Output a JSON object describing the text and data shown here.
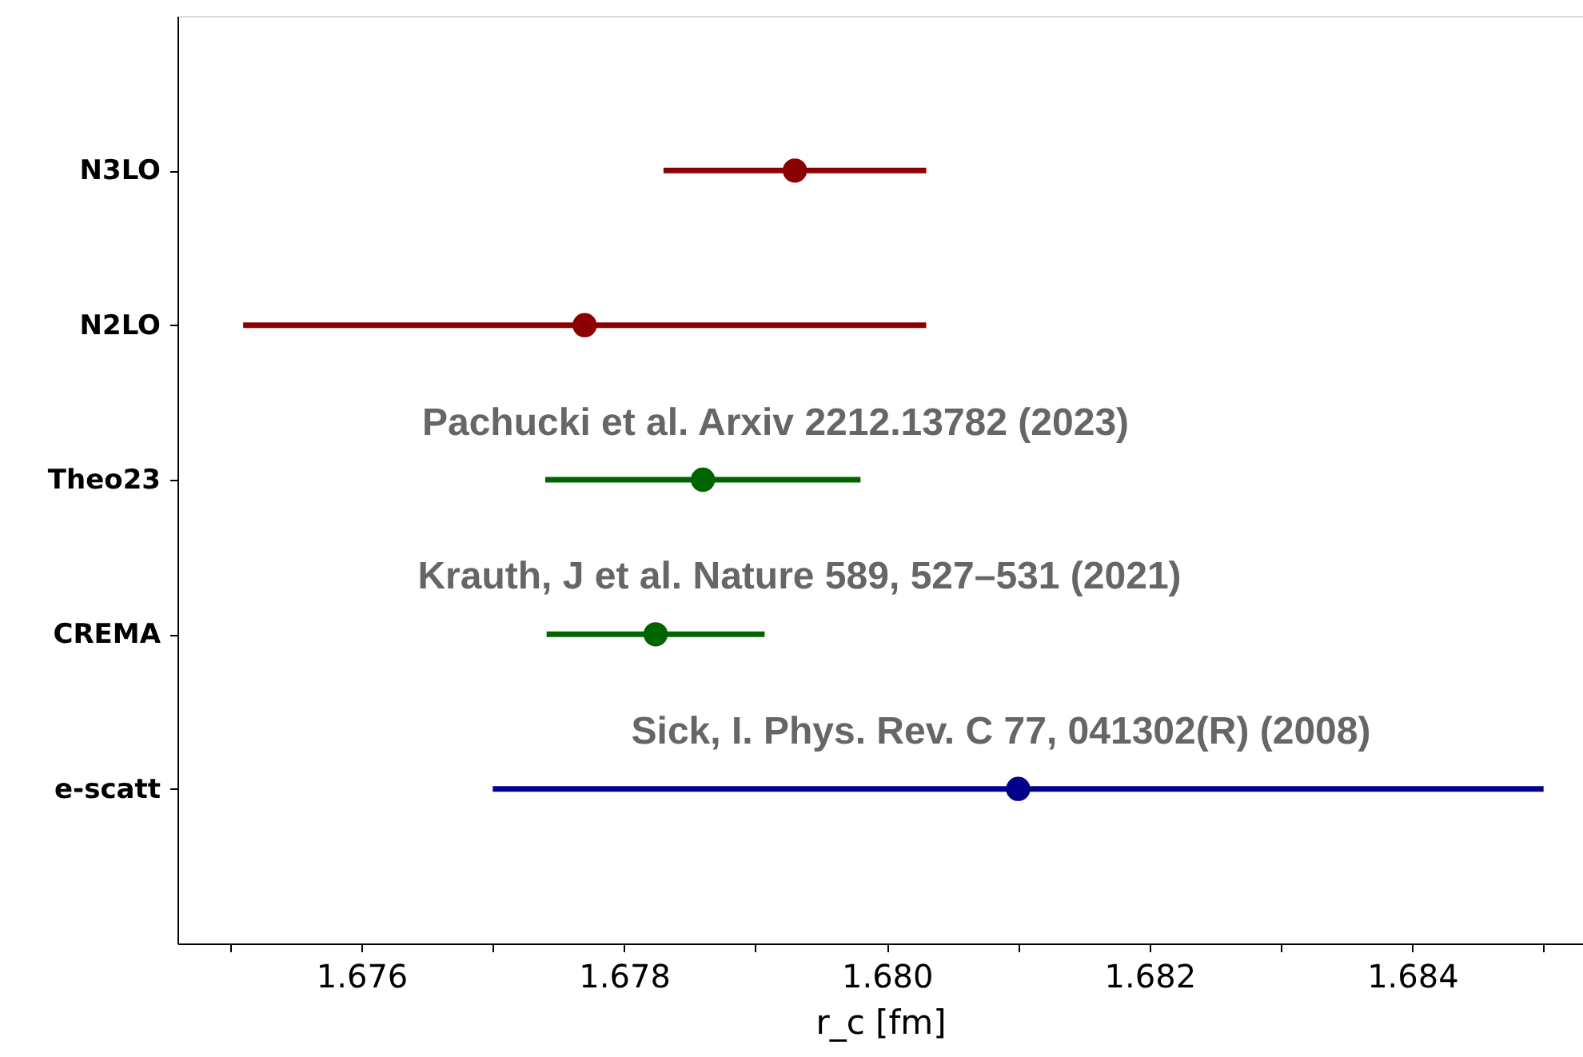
{
  "chart_data": {
    "type": "scatter",
    "orientation": "horizontal",
    "categories": [
      "N3LO",
      "N2LO",
      "Theo23",
      "CREMA",
      "e-scatt"
    ],
    "values": [
      1.6793,
      1.6777,
      1.6786,
      1.67824,
      1.681
    ],
    "errors": [
      0.001,
      0.0026,
      0.0012,
      0.00083,
      0.004
    ],
    "colors": [
      "#8b0000",
      "#8b0000",
      "#006400",
      "#006400",
      "#00008b"
    ],
    "xlabel": "r_c [fm]",
    "xlim": [
      1.6746,
      1.6853
    ],
    "xticks": [
      {
        "value": 1.675,
        "label": null
      },
      1.676,
      {
        "value": 1.677,
        "label": null
      },
      1.678,
      {
        "value": 1.679,
        "label": null
      },
      {
        "value": 1.68,
        "label": "1.680"
      },
      {
        "value": 1.681,
        "label": null
      },
      1.682,
      {
        "value": 1.683,
        "label": null
      },
      1.684,
      {
        "value": 1.685,
        "label": null
      }
    ],
    "marker": "circle",
    "grid": false,
    "annotations": [
      "Pachucki et al. Arxiv 2212.13782 (2023)",
      "Krauth, J et al. Nature 589, 527–531 (2021)",
      "Sick, I. Phys. Rev. C 77, 041302(R) (2008)"
    ]
  }
}
